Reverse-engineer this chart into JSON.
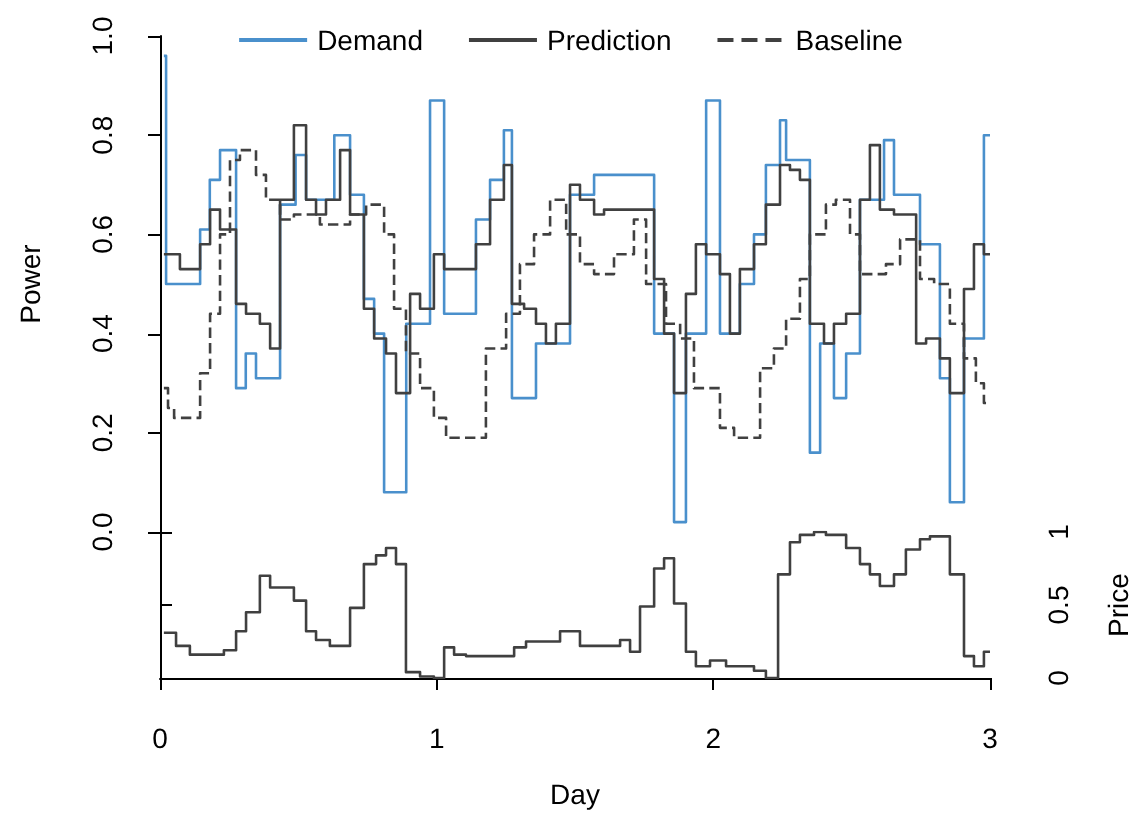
{
  "chart_data": [
    {
      "type": "step",
      "ylabel": "Power",
      "legend": "top",
      "grid": false,
      "tick_labels": "y",
      "xlim": [
        0,
        3
      ],
      "ylim": [
        0,
        1
      ],
      "yticks": [
        {
          "value": 0,
          "label": "0.0"
        },
        0.2,
        0.4,
        0.6,
        0.8,
        {
          "value": 1,
          "label": "1.0"
        }
      ],
      "series": [
        {
          "name": "Demand",
          "color": "#4a90cc",
          "line_style": "solid",
          "x": [
            0.014,
            0.022,
            0.145,
            0.18,
            0.217,
            0.275,
            0.31,
            0.347,
            0.434,
            0.49,
            0.528,
            0.63,
            0.687,
            0.737,
            0.774,
            0.81,
            0.89,
            0.976,
            1.027,
            1.142,
            1.193,
            1.243,
            1.272,
            1.359,
            1.482,
            1.569,
            1.786,
            1.858,
            1.901,
            1.974,
            2.024,
            2.096,
            2.147,
            2.19,
            2.241,
            2.263,
            2.349,
            2.386,
            2.436,
            2.48,
            2.53,
            2.617,
            2.653,
            2.747,
            2.819,
            2.855,
            2.906,
            2.978,
            3.0
          ],
          "values": [
            0.96,
            0.5,
            0.61,
            0.71,
            0.77,
            0.29,
            0.36,
            0.31,
            0.66,
            0.76,
            0.67,
            0.8,
            0.68,
            0.47,
            0.4,
            0.08,
            0.42,
            0.87,
            0.44,
            0.63,
            0.71,
            0.81,
            0.27,
            0.38,
            0.68,
            0.72,
            0.4,
            0.02,
            0.4,
            0.87,
            0.4,
            0.5,
            0.6,
            0.74,
            0.83,
            0.75,
            0.16,
            0.38,
            0.27,
            0.36,
            0.67,
            0.79,
            0.68,
            0.58,
            0.31,
            0.06,
            0.39,
            0.8,
            0.8
          ]
        },
        {
          "name": "Prediction",
          "color": "#404040",
          "line_style": "solid",
          "x": [
            0.014,
            0.072,
            0.145,
            0.181,
            0.217,
            0.275,
            0.311,
            0.361,
            0.398,
            0.434,
            0.484,
            0.528,
            0.564,
            0.6,
            0.651,
            0.687,
            0.737,
            0.774,
            0.817,
            0.853,
            0.904,
            0.94,
            0.99,
            1.027,
            1.142,
            1.193,
            1.243,
            1.272,
            1.316,
            1.359,
            1.395,
            1.431,
            1.482,
            1.518,
            1.569,
            1.605,
            1.786,
            1.822,
            1.858,
            1.901,
            1.937,
            1.974,
            2.024,
            2.06,
            2.096,
            2.147,
            2.19,
            2.241,
            2.277,
            2.313,
            2.349,
            2.4,
            2.436,
            2.48,
            2.53,
            2.566,
            2.602,
            2.653,
            2.733,
            2.769,
            2.819,
            2.855,
            2.906,
            2.942,
            2.978,
            3.0
          ],
          "values": [
            0.56,
            0.53,
            0.58,
            0.65,
            0.61,
            0.46,
            0.44,
            0.42,
            0.37,
            0.67,
            0.82,
            0.67,
            0.64,
            0.67,
            0.77,
            0.64,
            0.45,
            0.39,
            0.36,
            0.28,
            0.48,
            0.45,
            0.56,
            0.53,
            0.58,
            0.67,
            0.74,
            0.46,
            0.45,
            0.42,
            0.38,
            0.42,
            0.7,
            0.67,
            0.64,
            0.65,
            0.51,
            0.4,
            0.28,
            0.48,
            0.58,
            0.56,
            0.52,
            0.4,
            0.53,
            0.58,
            0.66,
            0.74,
            0.73,
            0.71,
            0.42,
            0.38,
            0.42,
            0.44,
            0.67,
            0.78,
            0.65,
            0.64,
            0.38,
            0.39,
            0.35,
            0.28,
            0.49,
            0.58,
            0.56,
            0.56
          ]
        },
        {
          "name": "Baseline",
          "color": "#404040",
          "line_style": "dashed",
          "x": [
            0.014,
            0.029,
            0.051,
            0.145,
            0.181,
            0.217,
            0.253,
            0.289,
            0.347,
            0.383,
            0.434,
            0.484,
            0.578,
            0.687,
            0.745,
            0.81,
            0.846,
            0.889,
            0.94,
            0.99,
            1.034,
            1.178,
            1.251,
            1.301,
            1.352,
            1.41,
            1.468,
            1.518,
            1.569,
            1.641,
            1.713,
            1.757,
            1.829,
            1.88,
            1.93,
            2.024,
            2.075,
            2.169,
            2.219,
            2.263,
            2.313,
            2.349,
            2.407,
            2.443,
            2.494,
            2.53,
            2.624,
            2.675,
            2.747,
            2.798,
            2.855,
            2.906,
            2.949,
            2.978,
            3.0
          ],
          "values": [
            0.29,
            0.25,
            0.23,
            0.32,
            0.44,
            0.6,
            0.75,
            0.77,
            0.72,
            0.67,
            0.63,
            0.64,
            0.62,
            0.64,
            0.66,
            0.6,
            0.45,
            0.36,
            0.29,
            0.23,
            0.19,
            0.37,
            0.44,
            0.54,
            0.6,
            0.67,
            0.6,
            0.54,
            0.52,
            0.56,
            0.63,
            0.5,
            0.42,
            0.39,
            0.29,
            0.21,
            0.19,
            0.33,
            0.37,
            0.43,
            0.51,
            0.6,
            0.66,
            0.67,
            0.6,
            0.52,
            0.54,
            0.59,
            0.51,
            0.5,
            0.42,
            0.35,
            0.3,
            0.26,
            0.26
          ]
        }
      ]
    },
    {
      "type": "step",
      "xlabel": "Day",
      "y2label": "Price",
      "grid": false,
      "xlim": [
        0,
        3
      ],
      "xticks": [
        0,
        1,
        2,
        3
      ],
      "y2lim": [
        0,
        1
      ],
      "y2ticks": [
        0,
        0.5,
        1
      ],
      "series": [
        {
          "color": "#404040",
          "axis": "y2",
          "x": [
            0.014,
            0.058,
            0.108,
            0.231,
            0.275,
            0.311,
            0.361,
            0.398,
            0.484,
            0.528,
            0.564,
            0.614,
            0.687,
            0.737,
            0.781,
            0.817,
            0.853,
            0.889,
            0.94,
            0.99,
            1.027,
            1.063,
            1.106,
            1.28,
            1.323,
            1.446,
            1.518,
            1.663,
            1.699,
            1.735,
            1.786,
            1.822,
            1.858,
            1.901,
            1.937,
            1.988,
            2.046,
            2.147,
            2.19,
            2.234,
            2.277,
            2.313,
            2.364,
            2.407,
            2.48,
            2.53,
            2.566,
            2.602,
            2.653,
            2.696,
            2.747,
            2.783,
            2.855,
            2.906,
            2.942,
            2.978,
            3.0
          ],
          "values": [
            0.31,
            0.22,
            0.16,
            0.19,
            0.32,
            0.45,
            0.7,
            0.62,
            0.53,
            0.32,
            0.26,
            0.22,
            0.48,
            0.78,
            0.84,
            0.89,
            0.78,
            0.04,
            0.01,
            0,
            0.21,
            0.16,
            0.15,
            0.21,
            0.25,
            0.32,
            0.22,
            0.26,
            0.18,
            0.49,
            0.75,
            0.82,
            0.51,
            0.18,
            0.08,
            0.12,
            0.08,
            0.05,
            0,
            0.71,
            0.93,
            0.98,
            1,
            0.98,
            0.89,
            0.78,
            0.71,
            0.63,
            0.71,
            0.88,
            0.95,
            0.97,
            0.71,
            0.15,
            0.08,
            0.18,
            0.18
          ]
        }
      ]
    }
  ]
}
